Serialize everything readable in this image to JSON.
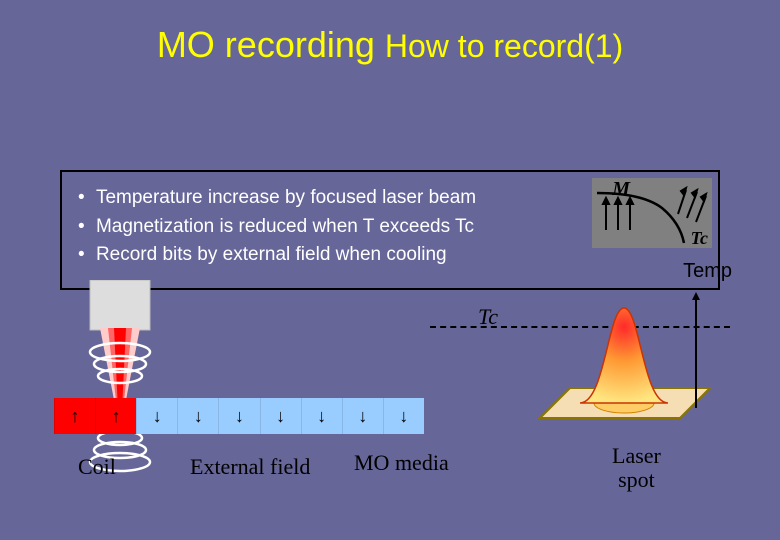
{
  "title_main": "MO recording ",
  "title_sub": "How to record(1)",
  "bullets": [
    "Temperature increase by focused laser beam",
    "Magnetization is reduced when T  exceeds Tc",
    "Record bits by external field when cooling"
  ],
  "mt_chart": {
    "label_m": "M",
    "label_tc": "Tc",
    "bg": "#808080",
    "curve_color": "#000000",
    "arrow_color": "#000000"
  },
  "temp_label": "Temp",
  "tc_label": "Tc",
  "media": {
    "bit_colors": [
      "#ff0000",
      "#ff0000",
      "#99ccff",
      "#99ccff",
      "#99ccff",
      "#99ccff",
      "#99ccff",
      "#99ccff",
      "#99ccff"
    ],
    "bit_dirs": [
      "up",
      "up",
      "down",
      "down",
      "down",
      "down",
      "down",
      "down",
      "down"
    ],
    "arrow_glyph_up": "↑",
    "arrow_glyph_down": "↓"
  },
  "labels": {
    "coil": "Coil",
    "external_field": "External field",
    "mo_media": "MO media",
    "laser_spot": "Laser\nspot"
  },
  "laser_spot": {
    "fill_peak": "#ff2a2a",
    "fill_mid": "#ff9933",
    "fill_base": "#ffe680",
    "plate": "#f5deb3",
    "plate_edge": "#8b7500",
    "axis_color": "#000000"
  },
  "laser_beam": {
    "beam_top": "#ffcccc",
    "beam_mid": "#ff6666",
    "beam_core": "#ff0000",
    "lens": "#dddddd",
    "coil_color": "#ffffff"
  },
  "colors": {
    "bg": "#666699",
    "title": "#ffff00",
    "text": "#ffffff",
    "border": "#000000"
  }
}
